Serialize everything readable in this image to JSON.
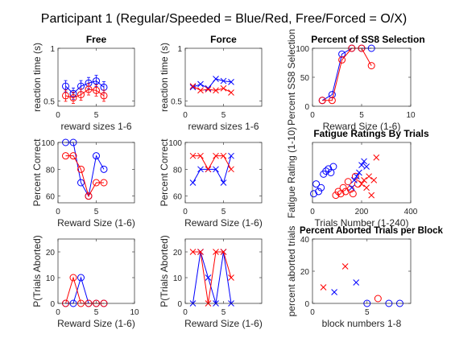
{
  "figure": {
    "suptitle": "Participant 1 (Regular/Speeded = Blue/Red, Free/Forced = O/X)",
    "colors": {
      "blue": "#0000ff",
      "red": "#ff0000",
      "axis": "#262626"
    }
  },
  "chart_data": [
    {
      "id": "p1",
      "type": "line",
      "title": "Free",
      "xlabel": "reward sizes 1-6",
      "ylabel": "reaction time (s)",
      "xlim": [
        0,
        10
      ],
      "ylim": [
        0.45,
        1.0
      ],
      "xticks": [
        0,
        5
      ],
      "xtick_labels": [
        "0",
        "5"
      ],
      "yticks": [
        0.5,
        1
      ],
      "ytick_labels": [
        "0.5",
        "1"
      ],
      "series": [
        {
          "color": "blue",
          "marker": "o",
          "error_bars": true,
          "x": [
            1,
            2,
            3,
            4,
            5,
            6
          ],
          "y": [
            0.64,
            0.57,
            0.64,
            0.67,
            0.69,
            0.63
          ]
        },
        {
          "color": "red",
          "marker": "o",
          "error_bars": true,
          "x": [
            1,
            2,
            3,
            4,
            5,
            6
          ],
          "y": [
            0.55,
            0.53,
            0.56,
            0.61,
            0.6,
            0.55
          ]
        }
      ]
    },
    {
      "id": "p2",
      "type": "line",
      "title": "Force",
      "xlabel": "reward sizes 1-6",
      "ylabel": "reaction time (s)",
      "xlim": [
        0,
        10
      ],
      "ylim": [
        0.45,
        1.0
      ],
      "xticks": [
        0,
        5
      ],
      "xtick_labels": [
        "0",
        "5"
      ],
      "yticks": [
        0.5,
        1
      ],
      "ytick_labels": [
        "0.5",
        "1"
      ],
      "series": [
        {
          "color": "blue",
          "marker": "x",
          "x": [
            1,
            2,
            3,
            4,
            5,
            6
          ],
          "y": [
            0.63,
            0.66,
            0.62,
            0.71,
            0.69,
            0.68
          ]
        },
        {
          "color": "red",
          "marker": "x",
          "x": [
            1,
            2,
            3,
            4,
            5,
            6
          ],
          "y": [
            0.64,
            0.6,
            0.61,
            0.6,
            0.62,
            0.58
          ]
        }
      ]
    },
    {
      "id": "p3",
      "type": "line",
      "title": "Percent of SS8 Selection",
      "xlabel": "Reward Size (1-6)",
      "ylabel": "Percent SS8 Selection",
      "xlim": [
        0,
        10
      ],
      "ylim": [
        0,
        100
      ],
      "xticks": [
        0,
        5,
        10
      ],
      "xtick_labels": [
        "0",
        "5",
        "10"
      ],
      "yticks": [
        0,
        50,
        100
      ],
      "ytick_labels": [
        "0",
        "50",
        "100"
      ],
      "series": [
        {
          "color": "blue",
          "marker": "o",
          "x": [
            1,
            2,
            3,
            4,
            5,
            6
          ],
          "y": [
            10,
            20,
            90,
            100,
            100,
            100
          ]
        },
        {
          "color": "red",
          "marker": "o",
          "x": [
            1,
            2,
            3,
            4,
            5,
            6
          ],
          "y": [
            10,
            10,
            80,
            100,
            100,
            70
          ]
        }
      ]
    },
    {
      "id": "p4",
      "type": "line",
      "title": "",
      "xlabel": "Reward Size (1-6)",
      "ylabel": "Percent Correct",
      "xlim": [
        0,
        10
      ],
      "ylim": [
        55,
        100
      ],
      "xticks": [
        0,
        5
      ],
      "xtick_labels": [
        "0",
        "5"
      ],
      "yticks": [
        60,
        80,
        100
      ],
      "ytick_labels": [
        "60",
        "80",
        "100"
      ],
      "series": [
        {
          "color": "blue",
          "marker": "o",
          "x": [
            1,
            2,
            3,
            4,
            5,
            6
          ],
          "y": [
            100,
            100,
            70,
            60,
            90,
            80
          ]
        },
        {
          "color": "red",
          "marker": "o",
          "x": [
            1,
            2,
            3,
            4,
            5,
            6
          ],
          "y": [
            90,
            90,
            80,
            60,
            70,
            70
          ]
        }
      ]
    },
    {
      "id": "p5",
      "type": "line",
      "title": "",
      "xlabel": "Reward Size (1-6)",
      "ylabel": "Percent Correct",
      "xlim": [
        0,
        10
      ],
      "ylim": [
        55,
        100
      ],
      "xticks": [
        0,
        5
      ],
      "xtick_labels": [
        "0",
        "5"
      ],
      "yticks": [
        60,
        80,
        100
      ],
      "ytick_labels": [
        "60",
        "80",
        "100"
      ],
      "series": [
        {
          "color": "blue",
          "marker": "x",
          "x": [
            1,
            2,
            3,
            4,
            5,
            6
          ],
          "y": [
            70,
            80,
            80,
            80,
            70,
            90
          ]
        },
        {
          "color": "red",
          "marker": "x",
          "x": [
            1,
            2,
            3,
            4,
            5,
            6
          ],
          "y": [
            90,
            90,
            80,
            90,
            90,
            80
          ]
        }
      ]
    },
    {
      "id": "p6",
      "type": "scatter",
      "title": "Fatigue Ratings By Trials",
      "xlabel": "Trials Number (1-240)",
      "ylabel": "Fatigue Rating (1-10)",
      "xlim": [
        0,
        400
      ],
      "ylim": [
        0,
        8
      ],
      "xticks": [
        0,
        200,
        400
      ],
      "xtick_labels": [
        "0",
        "200",
        "400"
      ],
      "yticks": [],
      "ytick_labels": [],
      "series": [
        {
          "color": "blue",
          "marker": "o",
          "x": [
            5,
            15,
            25,
            35,
            45,
            55,
            65,
            75,
            85
          ],
          "y": [
            1.2,
            2.5,
            1.5,
            2.0,
            3.8,
            4.2,
            4.5,
            4.0,
            4.8
          ]
        },
        {
          "color": "red",
          "marker": "o",
          "x": [
            95,
            105,
            115,
            125,
            135,
            145,
            155,
            165,
            175,
            185
          ],
          "y": [
            1.0,
            1.5,
            1.2,
            2.0,
            1.5,
            2.8,
            1.8,
            1.2,
            3.5,
            2.5
          ]
        },
        {
          "color": "blue",
          "marker": "x",
          "x": [
            160,
            170,
            180,
            190,
            200,
            210,
            220
          ],
          "y": [
            2.0,
            3.0,
            3.5,
            4.0,
            5.0,
            5.5,
            4.8
          ]
        },
        {
          "color": "red",
          "marker": "x",
          "x": [
            200,
            210,
            220,
            230,
            240,
            250,
            260
          ],
          "y": [
            2.5,
            3.0,
            2.0,
            3.5,
            1.0,
            3.0,
            6.0
          ]
        }
      ]
    },
    {
      "id": "p7",
      "type": "line",
      "title": "",
      "xlabel": "Reward Size (1-6)",
      "ylabel": "P(Trials Aborted)",
      "xlim": [
        0,
        10
      ],
      "ylim": [
        0,
        25
      ],
      "xticks": [
        0,
        5,
        10
      ],
      "xtick_labels": [
        "0",
        "5",
        "10"
      ],
      "yticks": [
        0,
        10,
        20
      ],
      "ytick_labels": [
        "0",
        "10",
        "20"
      ],
      "series": [
        {
          "color": "blue",
          "marker": "o",
          "x": [
            1,
            2,
            3,
            4,
            5,
            6
          ],
          "y": [
            0,
            0,
            10,
            0,
            0,
            0
          ]
        },
        {
          "color": "red",
          "marker": "o",
          "x": [
            1,
            2,
            3,
            4,
            5,
            6
          ],
          "y": [
            0,
            10,
            0,
            0,
            0,
            0
          ]
        }
      ]
    },
    {
      "id": "p8",
      "type": "line",
      "title": "",
      "xlabel": "Reward Size (1-6)",
      "ylabel": "P(Trials Aborted)",
      "xlim": [
        0,
        10
      ],
      "ylim": [
        0,
        25
      ],
      "xticks": [
        0,
        5
      ],
      "xtick_labels": [
        "0",
        "5"
      ],
      "yticks": [
        0,
        10,
        20
      ],
      "ytick_labels": [
        "0",
        "10",
        "20"
      ],
      "series": [
        {
          "color": "blue",
          "marker": "x",
          "x": [
            1,
            2,
            3,
            4,
            5,
            6
          ],
          "y": [
            0,
            20,
            10,
            0,
            20,
            0
          ]
        },
        {
          "color": "red",
          "marker": "x",
          "x": [
            1,
            2,
            3,
            4,
            5,
            6
          ],
          "y": [
            20,
            20,
            0,
            20,
            20,
            10
          ]
        }
      ]
    },
    {
      "id": "p9",
      "type": "scatter",
      "title": "Percent Aborted Trials per Block",
      "xlabel": "block numbers 1-8",
      "ylabel": "percent aborted trials",
      "xlim": [
        0,
        9
      ],
      "ylim": [
        0,
        40
      ],
      "xticks": [
        0,
        5
      ],
      "xtick_labels": [
        "0",
        "5"
      ],
      "yticks": [
        0,
        20,
        40
      ],
      "ytick_labels": [
        "0",
        "20",
        "40"
      ],
      "series": [
        {
          "color": "red",
          "marker": "x",
          "x": [
            1,
            3
          ],
          "y": [
            10,
            23
          ]
        },
        {
          "color": "blue",
          "marker": "x",
          "x": [
            2,
            4
          ],
          "y": [
            7,
            13
          ]
        },
        {
          "color": "blue",
          "marker": "o",
          "x": [
            5,
            7,
            8
          ],
          "y": [
            0,
            0,
            0
          ]
        },
        {
          "color": "red",
          "marker": "o",
          "x": [
            6
          ],
          "y": [
            3
          ]
        }
      ]
    }
  ]
}
